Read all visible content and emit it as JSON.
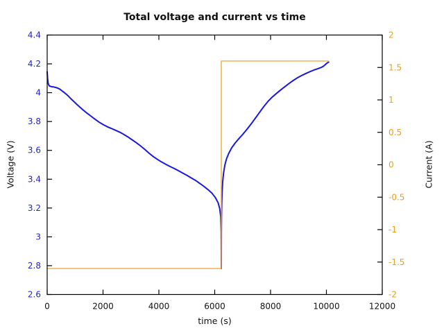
{
  "chart_data": {
    "type": "line",
    "title": "Total voltage and current vs time",
    "xlabel": "time (s)",
    "ylabel_left": "Voltage (V)",
    "ylabel_right": "Current (A)",
    "xlim": [
      0,
      12000
    ],
    "ylim_left": [
      2.6,
      4.4
    ],
    "ylim_right": [
      -2,
      2
    ],
    "xticks": [
      0,
      2000,
      4000,
      6000,
      8000,
      10000,
      12000
    ],
    "yticks_left": [
      2.6,
      2.8,
      3,
      3.2,
      3.4,
      3.6,
      3.8,
      4,
      4.2,
      4.4
    ],
    "yticks_right": [
      -2,
      -1.5,
      -1,
      -0.5,
      0,
      0.5,
      1,
      1.5,
      2
    ],
    "grid": false,
    "legend": null,
    "colors": {
      "frame": "#000000",
      "x_tick_label": "#111111",
      "left_tick_label": "#2323d0",
      "right_tick_label": "#e8a019",
      "voltage_line": "#1717e0",
      "current_line": "#f0ab3c"
    },
    "series": [
      {
        "name": "voltage",
        "axis": "left",
        "color": "#1717e0",
        "width": 2,
        "points": [
          [
            0,
            4.145
          ],
          [
            15,
            4.1
          ],
          [
            35,
            4.065
          ],
          [
            70,
            4.048
          ],
          [
            150,
            4.042
          ],
          [
            250,
            4.039
          ],
          [
            350,
            4.034
          ],
          [
            450,
            4.025
          ],
          [
            550,
            4.01
          ],
          [
            650,
            3.995
          ],
          [
            750,
            3.978
          ],
          [
            850,
            3.958
          ],
          [
            950,
            3.94
          ],
          [
            1100,
            3.912
          ],
          [
            1250,
            3.886
          ],
          [
            1400,
            3.862
          ],
          [
            1550,
            3.84
          ],
          [
            1700,
            3.818
          ],
          [
            1850,
            3.797
          ],
          [
            2000,
            3.779
          ],
          [
            2150,
            3.764
          ],
          [
            2300,
            3.752
          ],
          [
            2450,
            3.739
          ],
          [
            2600,
            3.726
          ],
          [
            2750,
            3.71
          ],
          [
            2900,
            3.692
          ],
          [
            3050,
            3.672
          ],
          [
            3200,
            3.652
          ],
          [
            3350,
            3.63
          ],
          [
            3500,
            3.606
          ],
          [
            3650,
            3.58
          ],
          [
            3800,
            3.557
          ],
          [
            3950,
            3.537
          ],
          [
            4100,
            3.519
          ],
          [
            4250,
            3.503
          ],
          [
            4400,
            3.488
          ],
          [
            4550,
            3.474
          ],
          [
            4700,
            3.459
          ],
          [
            4850,
            3.443
          ],
          [
            5000,
            3.427
          ],
          [
            5150,
            3.41
          ],
          [
            5300,
            3.393
          ],
          [
            5450,
            3.373
          ],
          [
            5600,
            3.352
          ],
          [
            5750,
            3.329
          ],
          [
            5900,
            3.303
          ],
          [
            6025,
            3.272
          ],
          [
            6125,
            3.235
          ],
          [
            6180,
            3.195
          ],
          [
            6215,
            3.14
          ],
          [
            6230,
            3.04
          ],
          [
            6236,
            2.78
          ],
          [
            6239,
            3.02
          ],
          [
            6244,
            3.14
          ],
          [
            6252,
            3.23
          ],
          [
            6265,
            3.31
          ],
          [
            6285,
            3.38
          ],
          [
            6315,
            3.44
          ],
          [
            6360,
            3.495
          ],
          [
            6420,
            3.54
          ],
          [
            6500,
            3.578
          ],
          [
            6600,
            3.615
          ],
          [
            6720,
            3.648
          ],
          [
            6850,
            3.678
          ],
          [
            7000,
            3.71
          ],
          [
            7150,
            3.745
          ],
          [
            7300,
            3.782
          ],
          [
            7450,
            3.822
          ],
          [
            7600,
            3.862
          ],
          [
            7750,
            3.902
          ],
          [
            7900,
            3.938
          ],
          [
            8050,
            3.968
          ],
          [
            8200,
            3.993
          ],
          [
            8350,
            4.017
          ],
          [
            8500,
            4.04
          ],
          [
            8650,
            4.062
          ],
          [
            8800,
            4.083
          ],
          [
            8950,
            4.102
          ],
          [
            9100,
            4.118
          ],
          [
            9250,
            4.132
          ],
          [
            9400,
            4.145
          ],
          [
            9550,
            4.157
          ],
          [
            9700,
            4.167
          ],
          [
            9800,
            4.174
          ],
          [
            9880,
            4.182
          ],
          [
            9950,
            4.193
          ],
          [
            10010,
            4.204
          ],
          [
            10080,
            4.212
          ]
        ]
      },
      {
        "name": "current",
        "axis": "right",
        "color": "#f0ab3c",
        "width": 1.4,
        "points": [
          [
            0,
            -1.6
          ],
          [
            6236,
            -1.6
          ],
          [
            6236,
            1.6
          ],
          [
            10080,
            1.6
          ]
        ]
      }
    ],
    "annotations": {
      "discharge_current_A": -1.6,
      "charge_current_A": 1.6,
      "current_step_time_s": 6240,
      "min_voltage_V": 2.78,
      "end_time_s": 10080,
      "end_voltage_V": 4.21
    }
  }
}
